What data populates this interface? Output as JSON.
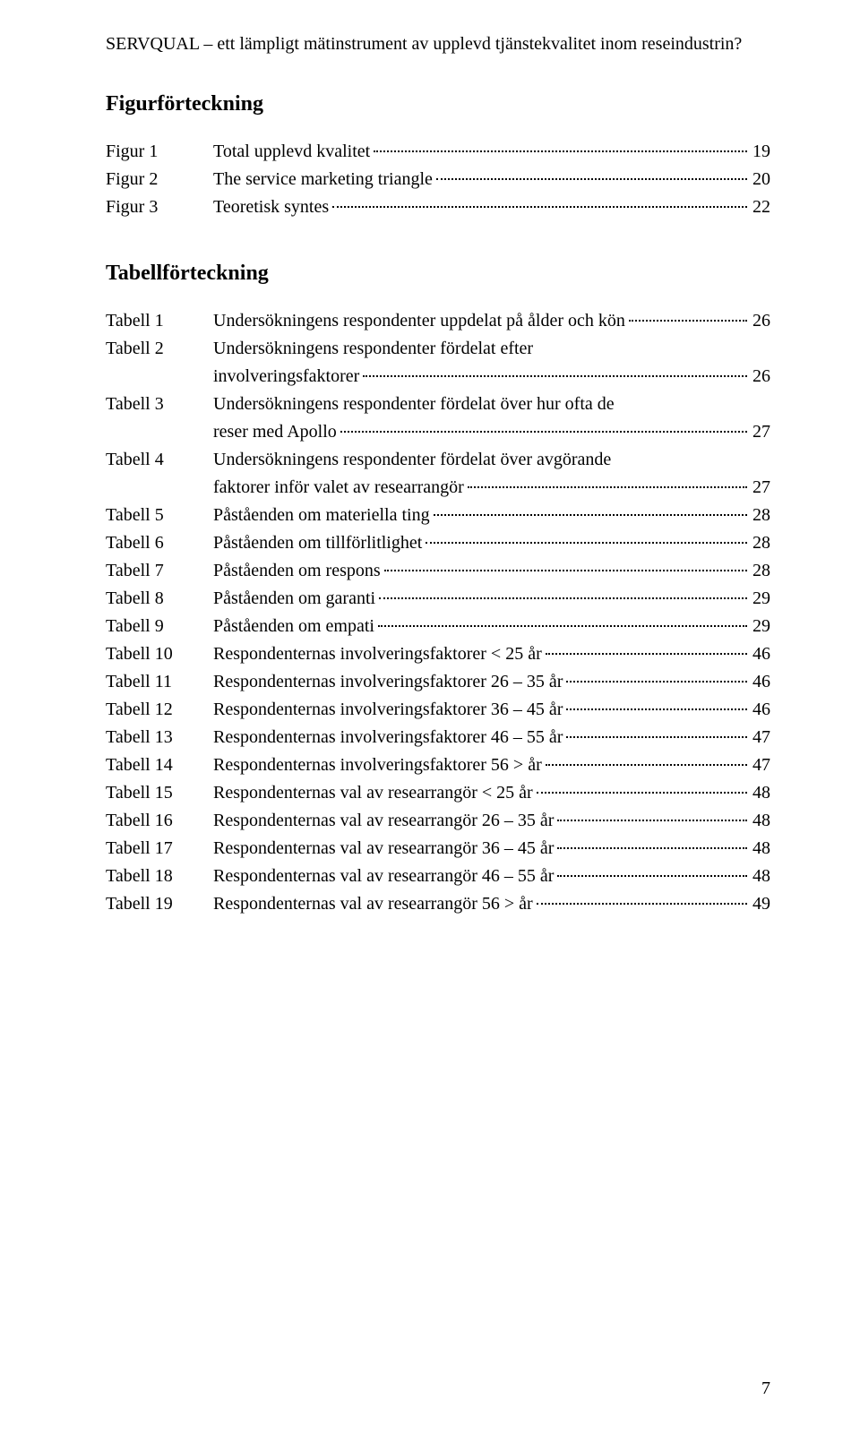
{
  "header": "SERVQUAL – ett lämpligt mätinstrument av upplevd tjänstekvalitet inom reseindustrin?",
  "figSection": {
    "title": "Figurförteckning",
    "items": [
      {
        "label": "Figur 1",
        "desc": "Total upplevd kvalitet",
        "page": "19"
      },
      {
        "label": "Figur 2",
        "desc": "The service marketing triangle",
        "page": "20"
      },
      {
        "label": "Figur 3",
        "desc": "Teoretisk syntes",
        "page": "22"
      }
    ]
  },
  "tabSection": {
    "title": "Tabellförteckning",
    "items": [
      {
        "label": "Tabell 1",
        "lines": [
          "Undersökningens respondenter uppdelat på ålder och kön"
        ],
        "page": "26"
      },
      {
        "label": "Tabell 2",
        "lines": [
          "Undersökningens respondenter fördelat efter",
          "involveringsfaktorer"
        ],
        "page": "26"
      },
      {
        "label": "Tabell 3",
        "lines": [
          "Undersökningens respondenter fördelat över hur ofta de",
          "reser med Apollo"
        ],
        "page": "27"
      },
      {
        "label": "Tabell 4",
        "lines": [
          "Undersökningens respondenter fördelat över avgörande",
          "faktorer inför valet av researrangör"
        ],
        "page": "27"
      },
      {
        "label": "Tabell 5",
        "lines": [
          "Påståenden om materiella ting"
        ],
        "page": "28"
      },
      {
        "label": "Tabell 6",
        "lines": [
          "Påståenden om tillförlitlighet"
        ],
        "page": "28"
      },
      {
        "label": "Tabell 7",
        "lines": [
          "Påståenden om respons"
        ],
        "page": "28"
      },
      {
        "label": "Tabell 8",
        "lines": [
          "Påståenden om garanti"
        ],
        "page": "29"
      },
      {
        "label": "Tabell 9",
        "lines": [
          "Påståenden om empati"
        ],
        "page": "29"
      },
      {
        "label": "Tabell 10",
        "lines": [
          "Respondenternas involveringsfaktorer < 25 år"
        ],
        "page": "46"
      },
      {
        "label": "Tabell 11",
        "lines": [
          "Respondenternas involveringsfaktorer 26 – 35 år"
        ],
        "page": "46"
      },
      {
        "label": "Tabell 12",
        "lines": [
          "Respondenternas involveringsfaktorer 36 – 45 år"
        ],
        "page": "46"
      },
      {
        "label": "Tabell 13",
        "lines": [
          "Respondenternas involveringsfaktorer 46 – 55 år"
        ],
        "page": "47"
      },
      {
        "label": "Tabell 14",
        "lines": [
          "Respondenternas involveringsfaktorer 56 > år"
        ],
        "page": "47"
      },
      {
        "label": "Tabell 15",
        "lines": [
          "Respondenternas val av researrangör < 25 år"
        ],
        "page": "48"
      },
      {
        "label": "Tabell 16",
        "lines": [
          "Respondenternas val av researrangör 26 – 35 år"
        ],
        "page": "48"
      },
      {
        "label": "Tabell 17",
        "lines": [
          "Respondenternas val av researrangör 36 – 45 år"
        ],
        "page": "48"
      },
      {
        "label": "Tabell 18",
        "lines": [
          "Respondenternas val av researrangör 46 – 55 år"
        ],
        "page": "48"
      },
      {
        "label": "Tabell 19",
        "lines": [
          "Respondenternas val av researrangör 56 > år"
        ],
        "page": "49"
      }
    ]
  },
  "pageNumber": "7"
}
